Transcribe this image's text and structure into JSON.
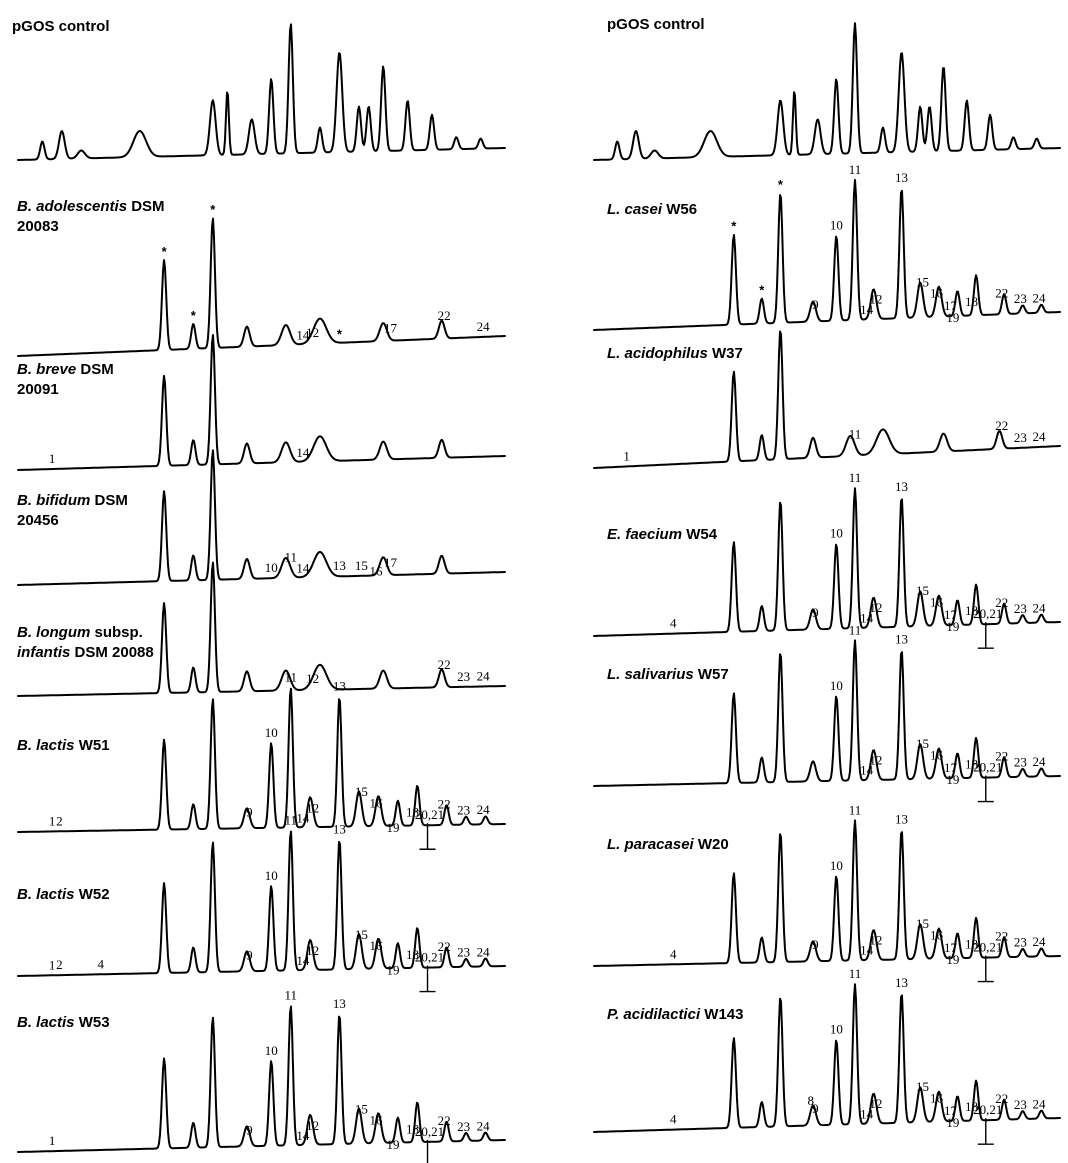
{
  "chart_data": [
    {
      "type": "line",
      "title": "pGOS control",
      "variant": "B",
      "peaks": [],
      "stars": []
    },
    {
      "type": "line",
      "title": "B. adolescentis DSM 20083",
      "variant": "A",
      "peaks": [
        "14",
        "12",
        "17",
        "22",
        "24"
      ],
      "stars": [
        "*",
        "*",
        "*",
        "*"
      ]
    },
    {
      "type": "line",
      "title": "B. breve DSM 20091",
      "variant": "A",
      "peaks": [
        "1",
        "14"
      ],
      "stars": []
    },
    {
      "type": "line",
      "title": "B. bifidum DSM 20456",
      "variant": "A",
      "peaks": [
        "11",
        "10",
        "14",
        "13",
        "15",
        "16",
        "17"
      ],
      "stars": []
    },
    {
      "type": "line",
      "title": "B. longum subsp. infantis DSM 20088",
      "variant": "A",
      "peaks": [
        "12",
        "22",
        "23",
        "24"
      ],
      "stars": []
    },
    {
      "type": "line",
      "title": "B. lactis W51",
      "variant": "C",
      "peaks": [
        "1",
        "2",
        "9",
        "10",
        "11",
        "14",
        "12",
        "13",
        "15",
        "16",
        "19",
        "18",
        "20,21",
        "22",
        "23",
        "24"
      ],
      "stars": []
    },
    {
      "type": "line",
      "title": "B. lactis W52",
      "variant": "C",
      "peaks": [
        "1",
        "2",
        "4",
        "9",
        "10",
        "11",
        "14",
        "12",
        "13",
        "15",
        "16",
        "19",
        "18",
        "20,21",
        "22",
        "23",
        "24"
      ],
      "stars": []
    },
    {
      "type": "line",
      "title": "B. lactis W53",
      "variant": "C",
      "peaks": [
        "1",
        "9",
        "10",
        "11",
        "14",
        "12",
        "13",
        "15",
        "16",
        "19",
        "18",
        "20,21",
        "22",
        "23",
        "24"
      ],
      "stars": []
    },
    {
      "type": "line",
      "title": "pGOS control",
      "variant": "B",
      "peaks": [],
      "stars": []
    },
    {
      "type": "line",
      "title": "L. casei W56",
      "variant": "C",
      "peaks": [
        "9",
        "10",
        "11",
        "14",
        "12",
        "13",
        "15",
        "16",
        "17",
        "18",
        "19",
        "22",
        "23",
        "24"
      ],
      "stars": [
        "*",
        "*",
        "*"
      ]
    },
    {
      "type": "line",
      "title": "L. acidophilus W37",
      "variant": "A",
      "peaks": [
        "1",
        "11",
        "22",
        "23",
        "24"
      ],
      "stars": []
    },
    {
      "type": "line",
      "title": "E. faecium W54",
      "variant": "C",
      "peaks": [
        "4",
        "9",
        "10",
        "11",
        "14",
        "12",
        "13",
        "15",
        "16",
        "17",
        "18",
        "19",
        "20,21",
        "22",
        "23",
        "24"
      ],
      "stars": []
    },
    {
      "type": "line",
      "title": "L. salivarius W57",
      "variant": "C",
      "peaks": [
        "10",
        "11",
        "14",
        "12",
        "13",
        "15",
        "16",
        "17",
        "18",
        "19",
        "20,21",
        "22",
        "23",
        "24"
      ],
      "stars": []
    },
    {
      "type": "line",
      "title": "L. paracasei W20",
      "variant": "C",
      "peaks": [
        "4",
        "9",
        "10",
        "11",
        "14",
        "12",
        "13",
        "15",
        "16",
        "17",
        "18",
        "19",
        "20,21",
        "22",
        "23",
        "24"
      ],
      "stars": []
    },
    {
      "type": "line",
      "title": "P. acidilactici W143",
      "variant": "C",
      "peaks": [
        "4",
        "8",
        "9",
        "10",
        "11",
        "14",
        "12",
        "13",
        "15",
        "16",
        "17",
        "18",
        "19",
        "20,21",
        "22",
        "23",
        "24"
      ],
      "stars": []
    }
  ],
  "panel_titles": [
    {
      "lines": [
        [
          {
            "text": "pGOS control",
            "italic": false
          }
        ]
      ]
    },
    {
      "lines": [
        [
          {
            "text": "B. adolescentis",
            "italic": true
          },
          {
            "text": " DSM",
            "italic": false
          }
        ],
        [
          {
            "text": "20083",
            "italic": false
          }
        ]
      ]
    },
    {
      "lines": [
        [
          {
            "text": "B. breve",
            "italic": true
          },
          {
            "text": " DSM",
            "italic": false
          }
        ],
        [
          {
            "text": "20091",
            "italic": false
          }
        ]
      ]
    },
    {
      "lines": [
        [
          {
            "text": "B. bifidum",
            "italic": true
          },
          {
            "text": " DSM",
            "italic": false
          }
        ],
        [
          {
            "text": "20456",
            "italic": false
          }
        ]
      ]
    },
    {
      "lines": [
        [
          {
            "text": "B. longum",
            "italic": true
          },
          {
            "text": " subsp.",
            "italic": false
          }
        ],
        [
          {
            "text": "infantis",
            "italic": true
          },
          {
            "text": " DSM 20088",
            "italic": false
          }
        ]
      ]
    },
    {
      "lines": [
        [
          {
            "text": "B. lactis",
            "italic": true
          },
          {
            "text": " W51",
            "italic": false
          }
        ]
      ]
    },
    {
      "lines": [
        [
          {
            "text": "B. lactis",
            "italic": true
          },
          {
            "text": " W52",
            "italic": false
          }
        ]
      ]
    },
    {
      "lines": [
        [
          {
            "text": "B. lactis",
            "italic": true
          },
          {
            "text": " W53",
            "italic": false
          }
        ]
      ]
    },
    {
      "lines": [
        [
          {
            "text": "pGOS control",
            "italic": false
          }
        ]
      ]
    },
    {
      "lines": [
        [
          {
            "text": "L. casei",
            "italic": true
          },
          {
            "text": " W56",
            "italic": false
          }
        ]
      ]
    },
    {
      "lines": [
        [
          {
            "text": "L. acidophilus",
            "italic": true
          },
          {
            "text": " W37",
            "italic": false
          }
        ]
      ]
    },
    {
      "lines": [
        [
          {
            "text": "E. faecium",
            "italic": true
          },
          {
            "text": " W54",
            "italic": false
          }
        ]
      ]
    },
    {
      "lines": [
        [
          {
            "text": "L. salivarius",
            "italic": true
          },
          {
            "text": " W57",
            "italic": false
          }
        ]
      ]
    },
    {
      "lines": [
        [
          {
            "text": "L. paracasei",
            "italic": true
          },
          {
            "text": " W20",
            "italic": false
          }
        ]
      ]
    },
    {
      "lines": [
        [
          {
            "text": "P. acidilactici",
            "italic": true
          },
          {
            "text": " W143",
            "italic": false
          }
        ]
      ]
    }
  ]
}
